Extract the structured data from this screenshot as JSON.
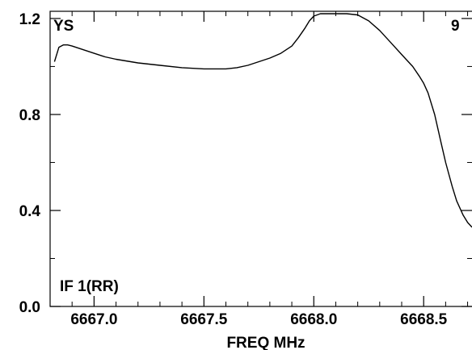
{
  "chart_data": {
    "type": "line",
    "xlabel": "FREQ MHz",
    "ylabel": "",
    "xlim": [
      6666.8,
      6668.72
    ],
    "ylim": [
      0.0,
      1.23
    ],
    "x_ticks": [
      6667.0,
      6667.5,
      6668.0,
      6668.5
    ],
    "x_tick_labels": [
      "6667.0",
      "6667.5",
      "6668.0",
      "6668.5"
    ],
    "y_ticks": [
      0.0,
      0.4,
      0.8,
      1.2
    ],
    "y_tick_labels": [
      "0.0",
      "0.4",
      "0.8",
      "1.2"
    ],
    "x_minor_ticks": [
      6666.9,
      6667.1,
      6667.2,
      6667.3,
      6667.4,
      6667.6,
      6667.7,
      6667.8,
      6667.9,
      6668.1,
      6668.2,
      6668.3,
      6668.4,
      6668.6,
      6668.7
    ],
    "y_minor_ticks": [
      0.2,
      0.6,
      1.0
    ],
    "grid": false,
    "annotations": {
      "top_left": "YS",
      "top_right": "9",
      "bottom_left": "IF 1(RR)"
    },
    "series": [
      {
        "x": [
          6666.82,
          6666.84,
          6666.86,
          6666.88,
          6666.9,
          6666.95,
          6667.0,
          6667.05,
          6667.1,
          6667.2,
          6667.3,
          6667.4,
          6667.5,
          6667.55,
          6667.6,
          6667.65,
          6667.7,
          6667.75,
          6667.8,
          6667.85,
          6667.9,
          6667.93,
          6667.96,
          6667.98,
          6668.0,
          6668.03,
          6668.05,
          6668.1,
          6668.15,
          6668.2,
          6668.25,
          6668.3,
          6668.35,
          6668.4,
          6668.45,
          6668.48,
          6668.5,
          6668.52,
          6668.55,
          6668.58,
          6668.6,
          6668.63,
          6668.65,
          6668.68,
          6668.7,
          6668.72
        ],
        "y": [
          1.02,
          1.08,
          1.09,
          1.09,
          1.085,
          1.07,
          1.055,
          1.04,
          1.03,
          1.015,
          1.005,
          0.995,
          0.99,
          0.99,
          0.99,
          0.995,
          1.005,
          1.02,
          1.035,
          1.055,
          1.085,
          1.12,
          1.16,
          1.19,
          1.21,
          1.22,
          1.22,
          1.22,
          1.22,
          1.215,
          1.19,
          1.15,
          1.1,
          1.05,
          1.0,
          0.96,
          0.93,
          0.89,
          0.8,
          0.68,
          0.6,
          0.5,
          0.44,
          0.38,
          0.35,
          0.33
        ]
      }
    ]
  }
}
